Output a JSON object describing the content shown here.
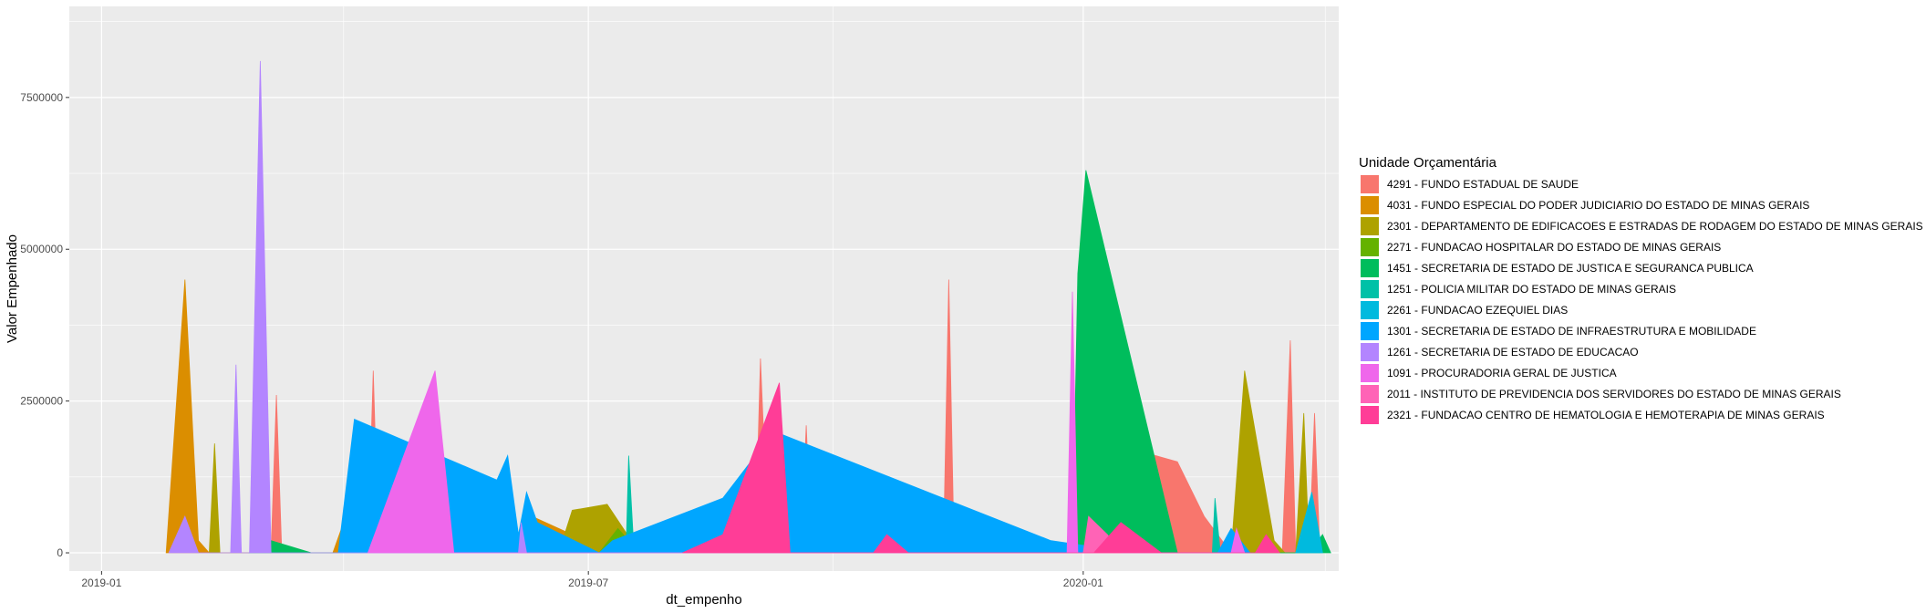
{
  "chart_data": {
    "type": "area",
    "xlabel": "dt_empenho",
    "ylabel": "Valor Empenhado",
    "x_ticks": [
      "2019-01",
      "2019-07",
      "2020-01"
    ],
    "y_ticks": [
      "0",
      "2500000",
      "5000000",
      "7500000"
    ],
    "xlim": [
      "2018-12-20",
      "2020-04-05"
    ],
    "ylim": [
      -300000,
      9000000
    ],
    "grid": true,
    "legend": {
      "title": "Unidade Orçamentária",
      "placement": "right"
    },
    "series": [
      {
        "name": "4291 - FUNDO ESTADUAL DE SAUDE",
        "color": "#F8766D",
        "points": [
          [
            "2019-03-05",
            0
          ],
          [
            "2019-03-07",
            2600000
          ],
          [
            "2019-03-09",
            0
          ],
          [
            "2019-04-10",
            0
          ],
          [
            "2019-04-12",
            3000000
          ],
          [
            "2019-04-14",
            0
          ],
          [
            "2019-09-01",
            0
          ],
          [
            "2019-09-03",
            3200000
          ],
          [
            "2019-09-06",
            0
          ],
          [
            "2019-09-18",
            0
          ],
          [
            "2019-09-20",
            2100000
          ],
          [
            "2019-09-22",
            0
          ],
          [
            "2019-11-10",
            0
          ],
          [
            "2019-11-12",
            4500000
          ],
          [
            "2019-11-14",
            0
          ],
          [
            "2020-01-10",
            0
          ],
          [
            "2020-01-20",
            1700000
          ],
          [
            "2020-02-05",
            1500000
          ],
          [
            "2020-02-15",
            600000
          ],
          [
            "2020-02-25",
            0
          ],
          [
            "2020-03-15",
            0
          ],
          [
            "2020-03-18",
            3500000
          ],
          [
            "2020-03-20",
            0
          ],
          [
            "2020-03-25",
            0
          ],
          [
            "2020-03-27",
            2300000
          ],
          [
            "2020-03-29",
            0
          ]
        ]
      },
      {
        "name": "4031 - FUNDO ESPECIAL DO PODER JUDICIARIO DO ESTADO DE MINAS GERAIS",
        "color": "#DB8E00",
        "points": [
          [
            "2019-01-25",
            0
          ],
          [
            "2019-02-01",
            4500000
          ],
          [
            "2019-02-06",
            200000
          ],
          [
            "2019-02-10",
            0
          ],
          [
            "2019-03-28",
            0
          ],
          [
            "2019-04-01",
            500000
          ],
          [
            "2019-04-05",
            0
          ],
          [
            "2019-06-05",
            0
          ],
          [
            "2019-06-10",
            600000
          ],
          [
            "2019-06-25",
            300000
          ],
          [
            "2019-07-01",
            0
          ]
        ]
      },
      {
        "name": "2301 - DEPARTAMENTO DE EDIFICACOES E ESTRADAS DE RODAGEM DO ESTADO DE MINAS GERAIS",
        "color": "#AEA200",
        "points": [
          [
            "2019-02-10",
            0
          ],
          [
            "2019-02-12",
            1800000
          ],
          [
            "2019-02-14",
            0
          ],
          [
            "2019-06-20",
            0
          ],
          [
            "2019-06-25",
            700000
          ],
          [
            "2019-07-08",
            800000
          ],
          [
            "2019-07-20",
            0
          ],
          [
            "2020-02-25",
            0
          ],
          [
            "2020-03-01",
            3000000
          ],
          [
            "2020-03-12",
            200000
          ],
          [
            "2020-03-16",
            0
          ],
          [
            "2020-03-20",
            0
          ],
          [
            "2020-03-23",
            2300000
          ],
          [
            "2020-03-25",
            0
          ]
        ]
      },
      {
        "name": "2271 - FUNDACAO HOSPITALAR DO ESTADO DE MINAS GERAIS",
        "color": "#64B200",
        "points": [
          [
            "2019-07-05",
            0
          ],
          [
            "2019-07-12",
            400000
          ],
          [
            "2019-07-20",
            0
          ],
          [
            "2019-11-20",
            0
          ],
          [
            "2019-11-25",
            300000
          ],
          [
            "2019-12-01",
            0
          ]
        ]
      },
      {
        "name": "1451 - SECRETARIA DE ESTADO DE JUSTICA E SEGURANCA PUBLICA",
        "color": "#00BD5C",
        "points": [
          [
            "2019-02-25",
            0
          ],
          [
            "2019-03-05",
            200000
          ],
          [
            "2019-03-20",
            0
          ],
          [
            "2019-12-28",
            0
          ],
          [
            "2019-12-30",
            4600000
          ],
          [
            "2020-01-02",
            6300000
          ],
          [
            "2020-02-05",
            0
          ],
          [
            "2020-03-25",
            0
          ],
          [
            "2020-03-30",
            300000
          ],
          [
            "2020-04-02",
            0
          ]
        ]
      },
      {
        "name": "1251 - POLICIA MILITAR DO ESTADO DE MINAS GERAIS",
        "color": "#00C1A7",
        "points": [
          [
            "2019-07-15",
            0
          ],
          [
            "2019-07-16",
            1600000
          ],
          [
            "2019-07-18",
            0
          ],
          [
            "2020-02-18",
            0
          ],
          [
            "2020-02-19",
            900000
          ],
          [
            "2020-02-21",
            0
          ]
        ]
      },
      {
        "name": "2261 - FUNDACAO EZEQUIEL DIAS",
        "color": "#00BADE",
        "points": [
          [
            "2020-03-20",
            0
          ],
          [
            "2020-03-26",
            1000000
          ],
          [
            "2020-03-30",
            0
          ]
        ]
      },
      {
        "name": "1301 - SECRETARIA DE ESTADO DE INFRAESTRUTURA E MOBILIDADE",
        "color": "#00A6FF",
        "points": [
          [
            "2019-03-30",
            0
          ],
          [
            "2019-04-05",
            2200000
          ],
          [
            "2019-05-28",
            1200000
          ],
          [
            "2019-06-01",
            1600000
          ],
          [
            "2019-06-05",
            300000
          ],
          [
            "2019-06-08",
            1000000
          ],
          [
            "2019-06-12",
            500000
          ],
          [
            "2019-07-05",
            0
          ],
          [
            "2019-07-10",
            200000
          ],
          [
            "2019-08-20",
            900000
          ],
          [
            "2019-09-08",
            2000000
          ],
          [
            "2019-12-20",
            200000
          ],
          [
            "2020-01-20",
            0
          ],
          [
            "2020-02-20",
            0
          ],
          [
            "2020-02-25",
            400000
          ],
          [
            "2020-03-03",
            0
          ]
        ]
      },
      {
        "name": "1261 - SECRETARIA DE ESTADO DE EDUCACAO",
        "color": "#B385FF",
        "points": [
          [
            "2019-01-26",
            0
          ],
          [
            "2019-02-01",
            600000
          ],
          [
            "2019-02-06",
            0
          ],
          [
            "2019-02-18",
            0
          ],
          [
            "2019-02-20",
            3100000
          ],
          [
            "2019-02-22",
            0
          ],
          [
            "2019-02-25",
            0
          ],
          [
            "2019-03-01",
            8100000
          ],
          [
            "2019-03-05",
            0
          ],
          [
            "2019-06-05",
            0
          ],
          [
            "2019-06-06",
            500000
          ],
          [
            "2019-06-08",
            0
          ]
        ]
      },
      {
        "name": "1091 - PROCURADORIA GERAL DE JUSTICA",
        "color": "#EF67EB",
        "points": [
          [
            "2019-04-10",
            0
          ],
          [
            "2019-05-05",
            3000000
          ],
          [
            "2019-05-12",
            0
          ],
          [
            "2019-12-26",
            0
          ],
          [
            "2019-12-28",
            4300000
          ],
          [
            "2019-12-30",
            0
          ],
          [
            "2020-02-25",
            0
          ],
          [
            "2020-02-27",
            400000
          ],
          [
            "2020-03-01",
            0
          ]
        ]
      },
      {
        "name": "2011 - INSTITUTO DE PREVIDENCIA DOS SERVIDORES DO ESTADO DE MINAS GERAIS",
        "color": "#FF63B6",
        "points": [
          [
            "2020-01-01",
            0
          ],
          [
            "2020-01-03",
            600000
          ],
          [
            "2020-01-10",
            300000
          ],
          [
            "2020-01-15",
            0
          ]
        ]
      },
      {
        "name": "2321 - FUNDACAO CENTRO DE HEMATOLOGIA E HEMOTERAPIA DE MINAS GERAIS",
        "color": "#FF3D97",
        "points": [
          [
            "2019-08-05",
            0
          ],
          [
            "2019-08-20",
            300000
          ],
          [
            "2019-09-10",
            2800000
          ],
          [
            "2019-09-14",
            0
          ],
          [
            "2019-10-15",
            0
          ],
          [
            "2019-10-20",
            300000
          ],
          [
            "2019-10-28",
            0
          ],
          [
            "2020-01-05",
            0
          ],
          [
            "2020-01-15",
            500000
          ],
          [
            "2020-01-30",
            0
          ],
          [
            "2020-03-05",
            0
          ],
          [
            "2020-03-09",
            300000
          ],
          [
            "2020-03-14",
            0
          ]
        ]
      }
    ]
  }
}
